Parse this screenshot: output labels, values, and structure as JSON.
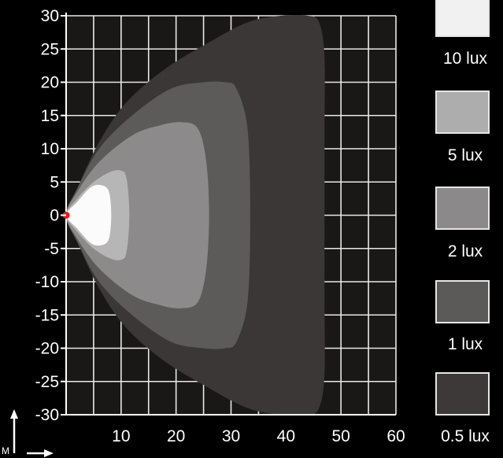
{
  "chart_data": {
    "type": "heatmap",
    "title": "",
    "xlabel": "",
    "ylabel": "",
    "xlim": [
      0,
      60
    ],
    "ylim": [
      -30,
      30
    ],
    "x_ticks": [
      10,
      20,
      30,
      40,
      50,
      60
    ],
    "y_ticks": [
      30,
      25,
      20,
      15,
      10,
      5,
      0,
      -5,
      -10,
      -15,
      -20,
      -25,
      -30
    ],
    "grid": true,
    "source_point": {
      "x": 0,
      "y": 0,
      "color": "#d62020"
    },
    "contours": [
      {
        "name": "0.5 lux",
        "color": "#3b3737",
        "points": [
          [
            0,
            0
          ],
          [
            2,
            -4
          ],
          [
            6,
            -11
          ],
          [
            11,
            -17
          ],
          [
            18,
            -22
          ],
          [
            26,
            -26
          ],
          [
            33,
            -29
          ],
          [
            39,
            -30
          ],
          [
            44,
            -30
          ],
          [
            46,
            -29
          ],
          [
            47,
            -24
          ],
          [
            47,
            -12
          ],
          [
            47,
            0
          ],
          [
            47,
            12
          ],
          [
            47,
            24
          ],
          [
            46,
            29
          ],
          [
            44,
            30
          ],
          [
            39,
            30
          ],
          [
            33,
            29
          ],
          [
            26,
            26
          ],
          [
            18,
            22
          ],
          [
            11,
            17
          ],
          [
            6,
            11
          ],
          [
            2,
            4
          ]
        ]
      },
      {
        "name": "1 lux",
        "color": "#5d5a5a",
        "points": [
          [
            0,
            0
          ],
          [
            2,
            -4
          ],
          [
            6,
            -10
          ],
          [
            12,
            -15
          ],
          [
            19,
            -19
          ],
          [
            25,
            -20
          ],
          [
            29,
            -20
          ],
          [
            31,
            -19
          ],
          [
            33,
            -13
          ],
          [
            33.5,
            0
          ],
          [
            33,
            13
          ],
          [
            31,
            19
          ],
          [
            29,
            20
          ],
          [
            25,
            20
          ],
          [
            19,
            19
          ],
          [
            12,
            15
          ],
          [
            6,
            10
          ],
          [
            2,
            4
          ]
        ]
      },
      {
        "name": "2 lux",
        "color": "#8c8a8a",
        "points": [
          [
            0,
            0
          ],
          [
            2,
            -3.5
          ],
          [
            6,
            -8
          ],
          [
            12,
            -12
          ],
          [
            17,
            -13.5
          ],
          [
            21,
            -14
          ],
          [
            24,
            -13
          ],
          [
            25.5,
            -8
          ],
          [
            26,
            0
          ],
          [
            25.5,
            8
          ],
          [
            24,
            13
          ],
          [
            21,
            14
          ],
          [
            17,
            13.5
          ],
          [
            12,
            12
          ],
          [
            6,
            8
          ],
          [
            2,
            3.5
          ]
        ]
      },
      {
        "name": "5 lux",
        "color": "#b7b6b6",
        "points": [
          [
            0,
            0
          ],
          [
            2,
            -2.5
          ],
          [
            5,
            -5
          ],
          [
            8,
            -6.5
          ],
          [
            10,
            -6.7
          ],
          [
            11,
            -5.5
          ],
          [
            11.5,
            0
          ],
          [
            11,
            5.5
          ],
          [
            10,
            6.7
          ],
          [
            8,
            6.5
          ],
          [
            5,
            5
          ],
          [
            2,
            2.5
          ]
        ]
      },
      {
        "name": "10 lux",
        "color": "#fbfbfb",
        "points": [
          [
            0,
            0
          ],
          [
            2,
            -2
          ],
          [
            4.5,
            -4.2
          ],
          [
            6.5,
            -4.5
          ],
          [
            7.8,
            -3.5
          ],
          [
            8.2,
            0
          ],
          [
            7.8,
            3.5
          ],
          [
            6.5,
            4.5
          ],
          [
            4.5,
            4.2
          ],
          [
            2,
            2
          ]
        ]
      }
    ],
    "legend": {
      "placement": "right",
      "entries": [
        {
          "label": "10 lux",
          "color": "#f1f1f1"
        },
        {
          "label": "5 lux",
          "color": "#aeadad"
        },
        {
          "label": "2 lux",
          "color": "#8b8989"
        },
        {
          "label": "1 lux",
          "color": "#5c5959"
        },
        {
          "label": "0.5 lux",
          "color": "#3d3939"
        }
      ]
    }
  },
  "corner": {
    "unit_label": "M"
  }
}
